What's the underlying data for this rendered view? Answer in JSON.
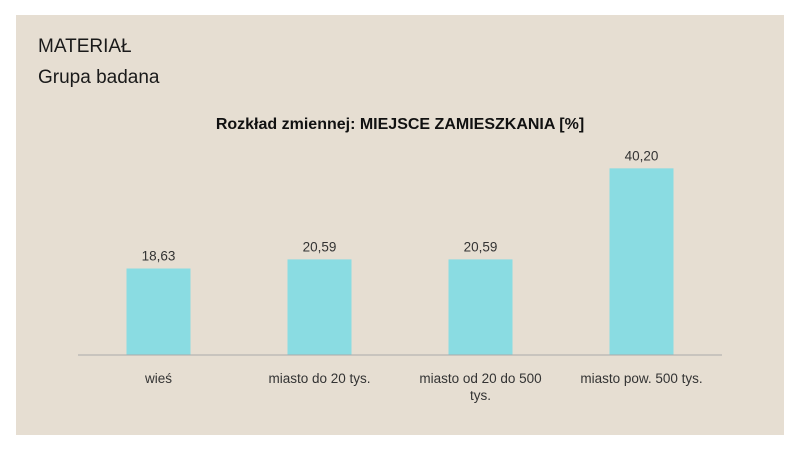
{
  "slide": {
    "heading": "MATERIAŁ",
    "subheading": "Grupa badana"
  },
  "colors": {
    "background": "#e6ded2",
    "bar": "#8adce2",
    "axis": "#aaaaaa"
  },
  "chart_data": {
    "type": "bar",
    "title": "Rozkład zmiennej: MIEJSCE ZAMIESZKANIA [%]",
    "categories": [
      "wieś",
      "miasto do 20 tys.",
      "miasto od 20 do 500 tys.",
      "miasto pow. 500 tys."
    ],
    "category_lines": [
      [
        "wieś"
      ],
      [
        "miasto do 20 tys."
      ],
      [
        "miasto od 20 do 500",
        "tys."
      ],
      [
        "miasto pow. 500 tys."
      ]
    ],
    "values": [
      18.63,
      20.59,
      20.59,
      40.2
    ],
    "value_labels": [
      "18,63",
      "20,59",
      "20,59",
      "40,20"
    ],
    "ylim": [
      0,
      42
    ],
    "grid": false,
    "legend": "none"
  }
}
